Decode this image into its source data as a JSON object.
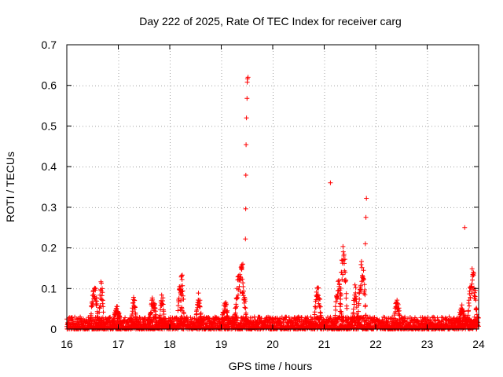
{
  "chart_data": {
    "type": "scatter",
    "title": "Day 222 of 2025, Rate Of TEC Index for receiver carg",
    "xlabel": "GPS time / hours",
    "ylabel": "ROTI / TECUs",
    "xlim": [
      16,
      24
    ],
    "ylim": [
      0,
      0.7
    ],
    "xticks": [
      16,
      17,
      18,
      19,
      20,
      21,
      22,
      23,
      24
    ],
    "yticks": [
      0,
      0.1,
      0.2,
      0.3,
      0.4,
      0.5,
      0.6,
      0.7
    ],
    "ytick_labels": [
      "0",
      "0.1",
      "0.2",
      "0.3",
      "0.4",
      "0.5",
      "0.6",
      "0.7"
    ],
    "grid": true,
    "marker": "+",
    "series": [
      {
        "name": "ROTI",
        "color": "#ff0000",
        "background": {
          "x_start": 16.0,
          "x_end": 24.0,
          "step": 0.01,
          "y_min": 0.0,
          "y_max": 0.03
        },
        "bursts": [
          {
            "x_start": 16.45,
            "x_end": 16.62,
            "y_max": 0.11
          },
          {
            "x_start": 16.62,
            "x_end": 16.72,
            "y_max": 0.12
          },
          {
            "x_start": 16.9,
            "x_end": 17.05,
            "y_max": 0.06
          },
          {
            "x_start": 17.25,
            "x_end": 17.35,
            "y_max": 0.08
          },
          {
            "x_start": 17.6,
            "x_end": 17.75,
            "y_max": 0.08
          },
          {
            "x_start": 17.8,
            "x_end": 17.9,
            "y_max": 0.09
          },
          {
            "x_start": 18.15,
            "x_end": 18.25,
            "y_max": 0.13
          },
          {
            "x_start": 18.2,
            "x_end": 18.28,
            "y_max": 0.165
          },
          {
            "x_start": 18.5,
            "x_end": 18.62,
            "y_max": 0.09
          },
          {
            "x_start": 19.0,
            "x_end": 19.15,
            "y_max": 0.07
          },
          {
            "x_start": 19.25,
            "x_end": 19.5,
            "y_max": 0.16
          },
          {
            "x_start": 20.8,
            "x_end": 20.95,
            "y_max": 0.11
          },
          {
            "x_start": 21.2,
            "x_end": 21.35,
            "y_max": 0.13
          },
          {
            "x_start": 21.3,
            "x_end": 21.45,
            "y_max": 0.22
          },
          {
            "x_start": 21.55,
            "x_end": 21.65,
            "y_max": 0.11
          },
          {
            "x_start": 21.65,
            "x_end": 21.82,
            "y_max": 0.17
          },
          {
            "x_start": 22.35,
            "x_end": 22.48,
            "y_max": 0.08
          },
          {
            "x_start": 23.6,
            "x_end": 23.75,
            "y_max": 0.06
          },
          {
            "x_start": 23.78,
            "x_end": 23.98,
            "y_max": 0.15
          }
        ],
        "points": [
          {
            "x": 19.4,
            "y": 0.158
          },
          {
            "x": 19.42,
            "y": 0.16
          },
          {
            "x": 19.47,
            "y": 0.222
          },
          {
            "x": 19.475,
            "y": 0.296
          },
          {
            "x": 19.478,
            "y": 0.379
          },
          {
            "x": 19.482,
            "y": 0.454
          },
          {
            "x": 19.49,
            "y": 0.52
          },
          {
            "x": 19.5,
            "y": 0.568
          },
          {
            "x": 19.505,
            "y": 0.608
          },
          {
            "x": 19.51,
            "y": 0.616
          },
          {
            "x": 19.52,
            "y": 0.62
          },
          {
            "x": 21.12,
            "y": 0.36
          },
          {
            "x": 21.8,
            "y": 0.21
          },
          {
            "x": 21.81,
            "y": 0.275
          },
          {
            "x": 21.82,
            "y": 0.322
          },
          {
            "x": 23.73,
            "y": 0.25
          }
        ]
      }
    ]
  }
}
